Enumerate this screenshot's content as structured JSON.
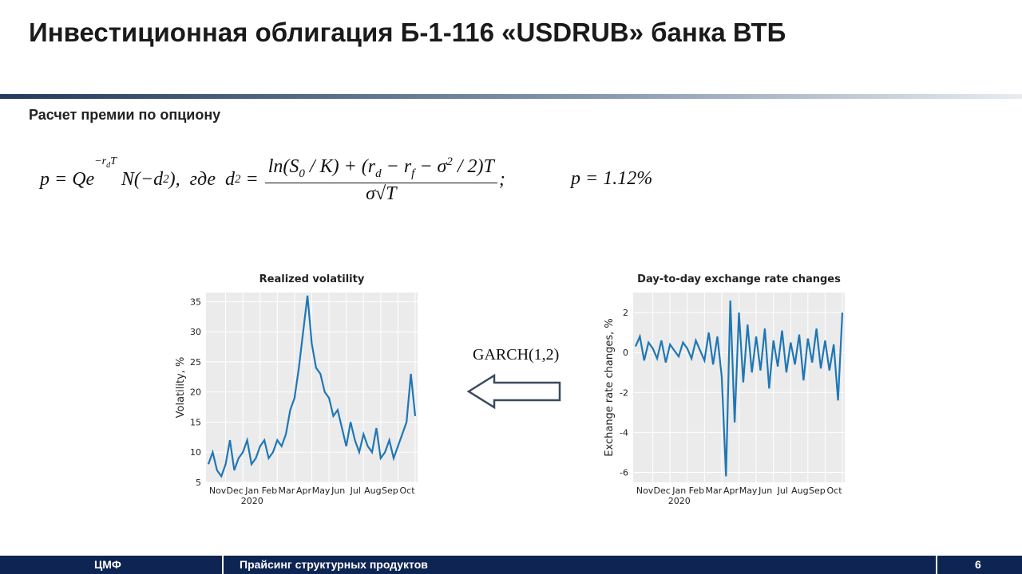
{
  "header": {
    "title": "Инвестиционная облигация Б-1-116 «USDRUB» банка ВТБ"
  },
  "subtitle": "Расчет премии по опциону",
  "formula": {
    "p": "p = Qe",
    "exp": "−r",
    "exp_sub": "d",
    "exp_t": "T",
    "n": " N(−d",
    "n_sub": "2",
    "where": "),  где  d",
    "where_sub": "2",
    "eq": " = ",
    "num": [
      "ln(S",
      "0",
      " / K) + (r",
      "d",
      " − r",
      "f",
      " − σ",
      "2",
      " / 2)T"
    ],
    "den": "σ√T",
    "semi": ";"
  },
  "result": "p = 1.12%",
  "arrow_label": "GARCH(1,2)",
  "charts": [
    {
      "type": "line",
      "title": "Realized volatility",
      "ylabel": "Volatility, %",
      "year_label": "2020",
      "color": "#1f77b4",
      "grid": true,
      "categories": [
        null,
        null,
        null,
        null,
        "Nov",
        null,
        null,
        null,
        "Dec",
        null,
        null,
        null,
        "Jan",
        null,
        null,
        null,
        "Feb",
        null,
        null,
        null,
        "Mar",
        null,
        null,
        null,
        "Apr",
        null,
        null,
        null,
        "May",
        null,
        null,
        null,
        "Jun",
        null,
        null,
        null,
        "Jul",
        null,
        null,
        null,
        "Aug",
        null,
        null,
        null,
        "Sep",
        null,
        null,
        null,
        "Oct"
      ],
      "values": [
        8,
        10,
        7,
        6,
        8,
        12,
        7,
        9,
        10,
        12,
        8,
        9,
        11,
        12,
        9,
        10,
        12,
        11,
        13,
        17,
        19,
        24,
        30,
        36,
        28,
        24,
        23,
        20,
        19,
        16,
        17,
        14,
        11,
        15,
        12,
        10,
        13,
        11,
        10,
        14,
        9,
        10,
        12,
        9,
        11,
        13,
        15,
        23,
        16
      ],
      "ylim": [
        5,
        36.5
      ],
      "yticks": [
        5,
        10,
        15,
        20,
        25,
        30,
        35
      ]
    },
    {
      "type": "line",
      "title": "Day-to-day exchange rate changes",
      "ylabel": "Exchange rate changes, %",
      "year_label": "2020",
      "color": "#1f77b4",
      "grid": true,
      "categories": [
        null,
        null,
        null,
        null,
        "Nov",
        null,
        null,
        null,
        "Dec",
        null,
        null,
        null,
        "Jan",
        null,
        null,
        null,
        "Feb",
        null,
        null,
        null,
        "Mar",
        null,
        null,
        null,
        "Apr",
        null,
        null,
        null,
        "May",
        null,
        null,
        null,
        "Jun",
        null,
        null,
        null,
        "Jul",
        null,
        null,
        null,
        "Aug",
        null,
        null,
        null,
        "Sep",
        null,
        null,
        null,
        "Oct"
      ],
      "values": [
        0.3,
        0.8,
        -0.4,
        0.5,
        0.2,
        -0.3,
        0.6,
        -0.5,
        0.4,
        0.1,
        -0.2,
        0.5,
        0.2,
        -0.3,
        0.6,
        0.1,
        -0.4,
        1.0,
        -0.6,
        0.8,
        -1.2,
        -6.2,
        2.6,
        -3.5,
        2.0,
        -1.5,
        1.4,
        -1.0,
        0.8,
        -0.9,
        1.2,
        -1.8,
        0.6,
        -0.7,
        1.1,
        -1.0,
        0.5,
        -0.6,
        0.9,
        -1.4,
        0.7,
        -0.5,
        1.2,
        -0.8,
        0.6,
        -0.9,
        0.4,
        -2.4,
        2.0
      ],
      "ylim": [
        -6.5,
        3
      ],
      "yticks": [
        -6,
        -4,
        -2,
        0,
        2
      ]
    }
  ],
  "footer": {
    "left": "ЦМФ",
    "center": "Прайсинг структурных продуктов",
    "page": "6"
  }
}
